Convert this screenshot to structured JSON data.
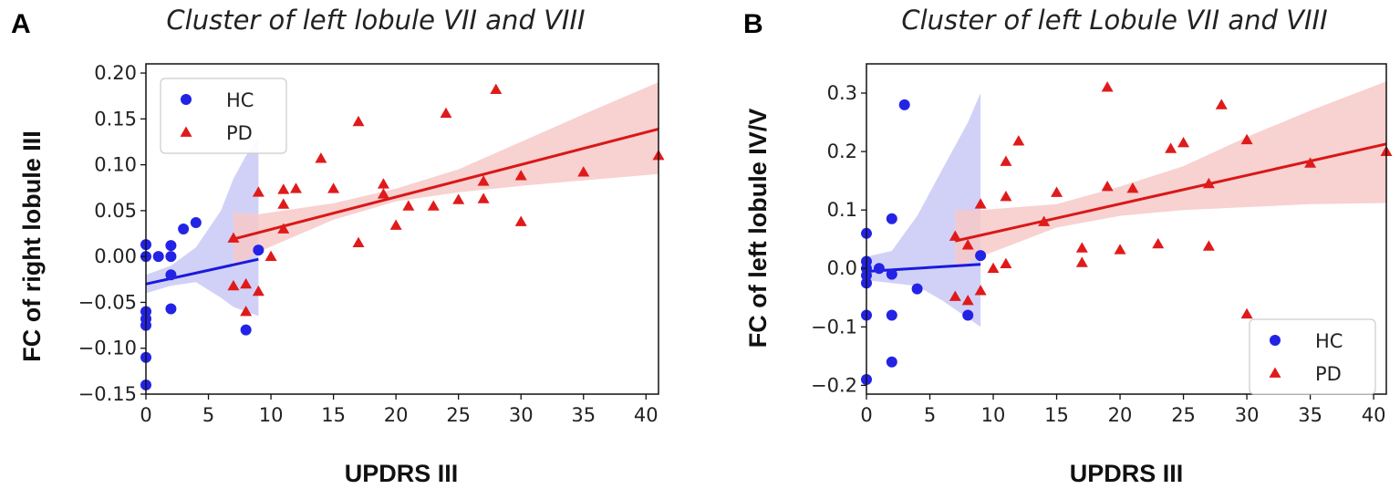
{
  "chart_data": [
    {
      "panel_label": "A",
      "type": "scatter",
      "title": "Cluster of left lobule VII and VIII",
      "xlabel": "UPDRS III",
      "ylabel": "FC of right lobule III",
      "xlim": [
        0,
        41
      ],
      "ylim": [
        -0.15,
        0.21
      ],
      "xticks": [
        0,
        5,
        10,
        15,
        20,
        25,
        30,
        35,
        40
      ],
      "xtick_labels": [
        "0",
        "5",
        "10",
        "15",
        "20",
        "25",
        "30",
        "35",
        "40"
      ],
      "yticks": [
        -0.15,
        -0.1,
        -0.05,
        0.0,
        0.05,
        0.1,
        0.15,
        0.2
      ],
      "ytick_labels": [
        "−0.15",
        "−0.10",
        "−0.05",
        "0.00",
        "0.05",
        "0.10",
        "0.15",
        "0.20"
      ],
      "legend_position": "top-left",
      "series": [
        {
          "name": "HC",
          "marker": "circle",
          "color": "#2323e6",
          "fit_color": "#1a1adc",
          "band_color": "#c9c9f7",
          "points": [
            [
              0,
              0.013
            ],
            [
              0,
              0
            ],
            [
              0,
              -0.06
            ],
            [
              0,
              -0.068
            ],
            [
              0,
              -0.075
            ],
            [
              0,
              -0.11
            ],
            [
              0,
              -0.14
            ],
            [
              1,
              0
            ],
            [
              2,
              0.012
            ],
            [
              2,
              0
            ],
            [
              2,
              -0.02
            ],
            [
              2,
              -0.057
            ],
            [
              3,
              0.03
            ],
            [
              4,
              0.037
            ],
            [
              8,
              -0.08
            ],
            [
              9,
              0.007
            ]
          ],
          "fit": {
            "x": [
              0,
              9
            ],
            "y": [
              -0.03,
              -0.003
            ]
          },
          "band": {
            "x": [
              0,
              2,
              4,
              6,
              7,
              8,
              9
            ],
            "lower": [
              -0.04,
              -0.032,
              -0.028,
              -0.045,
              -0.055,
              -0.06,
              -0.065
            ],
            "upper": [
              -0.02,
              -0.01,
              0.01,
              0.05,
              0.085,
              0.11,
              0.13
            ]
          }
        },
        {
          "name": "PD",
          "marker": "triangle",
          "color": "#e01a1a",
          "fit_color": "#d81818",
          "band_color": "#f7c9c9",
          "points": [
            [
              7,
              0.02
            ],
            [
              7,
              -0.032
            ],
            [
              8,
              -0.03
            ],
            [
              8,
              -0.06
            ],
            [
              9,
              0.07
            ],
            [
              9,
              -0.038
            ],
            [
              10,
              0
            ],
            [
              11,
              0.073
            ],
            [
              11,
              0.057
            ],
            [
              11,
              0.03
            ],
            [
              12,
              0.074
            ],
            [
              14,
              0.107
            ],
            [
              15,
              0.074
            ],
            [
              17,
              0.147
            ],
            [
              17,
              0.015
            ],
            [
              19,
              0.079
            ],
            [
              19,
              0.068
            ],
            [
              20,
              0.034
            ],
            [
              21,
              0.055
            ],
            [
              23,
              0.055
            ],
            [
              24,
              0.156
            ],
            [
              25,
              0.062
            ],
            [
              27,
              0.082
            ],
            [
              27,
              0.063
            ],
            [
              28,
              0.182
            ],
            [
              30,
              0.088
            ],
            [
              30,
              0.038
            ],
            [
              35,
              0.092
            ],
            [
              41,
              0.11
            ]
          ],
          "fit": {
            "x": [
              7,
              41
            ],
            "y": [
              0.019,
              0.139
            ]
          },
          "band": {
            "x": [
              7,
              9,
              15,
              20,
              25,
              30,
              35,
              41
            ],
            "lower": [
              -0.012,
              0.005,
              0.04,
              0.06,
              0.07,
              0.077,
              0.083,
              0.09
            ],
            "upper": [
              0.048,
              0.046,
              0.058,
              0.074,
              0.095,
              0.125,
              0.155,
              0.19
            ]
          }
        }
      ]
    },
    {
      "panel_label": "B",
      "type": "scatter",
      "title": "Cluster of  left Lobule VII and VIII",
      "xlabel": "UPDRS III",
      "ylabel": "FC of left lobule IV/V",
      "xlim": [
        0,
        41
      ],
      "ylim": [
        -0.215,
        0.35
      ],
      "xticks": [
        0,
        5,
        10,
        15,
        20,
        25,
        30,
        35,
        40
      ],
      "xtick_labels": [
        "0",
        "5",
        "10",
        "15",
        "20",
        "25",
        "30",
        "35",
        "40"
      ],
      "yticks": [
        -0.2,
        -0.1,
        0.0,
        0.1,
        0.2,
        0.3
      ],
      "ytick_labels": [
        "−0.2",
        "−0.1",
        "0.0",
        "0.1",
        "0.2",
        "0.3"
      ],
      "legend_position": "bottom-right",
      "series": [
        {
          "name": "HC",
          "marker": "circle",
          "color": "#2323e6",
          "fit_color": "#1a1adc",
          "band_color": "#c9c9f7",
          "points": [
            [
              0,
              0.06
            ],
            [
              0,
              0.012
            ],
            [
              0,
              0
            ],
            [
              0,
              -0.012
            ],
            [
              0,
              -0.025
            ],
            [
              0,
              -0.08
            ],
            [
              0,
              -0.19
            ],
            [
              1,
              0
            ],
            [
              2,
              0.085
            ],
            [
              2,
              -0.01
            ],
            [
              2,
              -0.08
            ],
            [
              2,
              -0.16
            ],
            [
              3,
              0.28
            ],
            [
              4,
              -0.035
            ],
            [
              8,
              -0.08
            ],
            [
              9,
              0.022
            ]
          ],
          "fit": {
            "x": [
              0,
              9
            ],
            "y": [
              -0.005,
              0.007
            ]
          },
          "band": {
            "x": [
              0,
              2,
              4,
              6,
              8,
              9
            ],
            "lower": [
              -0.02,
              -0.025,
              -0.03,
              -0.055,
              -0.085,
              -0.1
            ],
            "upper": [
              0.02,
              0.03,
              0.09,
              0.17,
              0.25,
              0.3
            ]
          }
        },
        {
          "name": "PD",
          "marker": "triangle",
          "color": "#e01a1a",
          "fit_color": "#d81818",
          "band_color": "#f7c9c9",
          "points": [
            [
              7,
              0.055
            ],
            [
              7,
              -0.048
            ],
            [
              8,
              0.04
            ],
            [
              8,
              -0.055
            ],
            [
              9,
              0.11
            ],
            [
              9,
              -0.038
            ],
            [
              10,
              0
            ],
            [
              11,
              0.183
            ],
            [
              11,
              0.123
            ],
            [
              11,
              0.008
            ],
            [
              12,
              0.218
            ],
            [
              14,
              0.08
            ],
            [
              15,
              0.13
            ],
            [
              17,
              0.035
            ],
            [
              17,
              0.01
            ],
            [
              19,
              0.31
            ],
            [
              19,
              0.14
            ],
            [
              20,
              0.032
            ],
            [
              21,
              0.137
            ],
            [
              23,
              0.042
            ],
            [
              24,
              0.205
            ],
            [
              25,
              0.215
            ],
            [
              27,
              0.145
            ],
            [
              27,
              0.038
            ],
            [
              28,
              0.28
            ],
            [
              30,
              0.22
            ],
            [
              30,
              -0.078
            ],
            [
              35,
              0.18
            ],
            [
              41,
              0.2
            ]
          ],
          "fit": {
            "x": [
              7,
              41
            ],
            "y": [
              0.047,
              0.213
            ]
          },
          "band": {
            "x": [
              7,
              9,
              15,
              20,
              25,
              30,
              35,
              41
            ],
            "lower": [
              0.0,
              0.02,
              0.07,
              0.09,
              0.1,
              0.105,
              0.11,
              0.112
            ],
            "upper": [
              0.1,
              0.1,
              0.11,
              0.14,
              0.175,
              0.225,
              0.27,
              0.32
            ]
          }
        }
      ]
    }
  ]
}
